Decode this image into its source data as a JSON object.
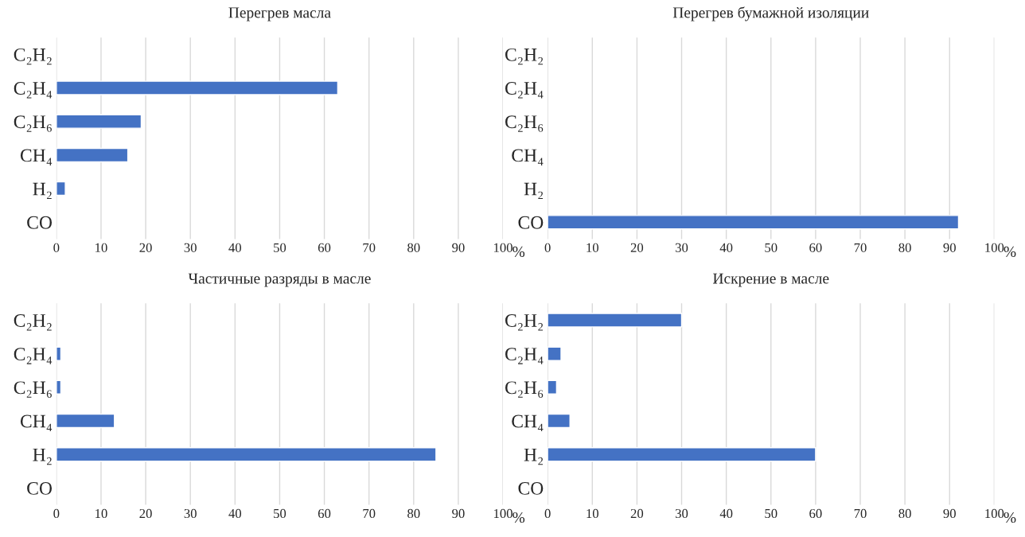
{
  "chart_data": [
    {
      "type": "bar",
      "orientation": "horizontal",
      "title": "Перегрев масла",
      "xlabel": "%",
      "categories": [
        "C₂H₂",
        "C₂H₄",
        "C₂H₆",
        "CH₄",
        "H₂",
        "CO"
      ],
      "values": [
        null,
        63,
        19,
        16,
        2,
        null
      ],
      "color": "#4472c4",
      "xlim": [
        0,
        100
      ],
      "xticks": [
        0,
        10,
        20,
        30,
        40,
        50,
        60,
        70,
        80,
        90,
        100
      ],
      "grid": "x"
    },
    {
      "type": "bar",
      "orientation": "horizontal",
      "title": "Перегрев бумажной изоляции",
      "xlabel": "%",
      "categories": [
        "C₂H₂",
        "C₂H₄",
        "C₂H₆",
        "CH₄",
        "H₂",
        "CO"
      ],
      "values": [
        null,
        null,
        null,
        null,
        null,
        92
      ],
      "color": "#4472c4",
      "xlim": [
        0,
        100
      ],
      "xticks": [
        0,
        10,
        20,
        30,
        40,
        50,
        60,
        70,
        80,
        90,
        100
      ],
      "grid": "x"
    },
    {
      "type": "bar",
      "orientation": "horizontal",
      "title": "Частичные разряды в масле",
      "xlabel": "%",
      "categories": [
        "C₂H₂",
        "C₂H₄",
        "C₂H₆",
        "CH₄",
        "H₂",
        "CO"
      ],
      "values": [
        null,
        1,
        1,
        13,
        85,
        null
      ],
      "color": "#4472c4",
      "xlim": [
        0,
        100
      ],
      "xticks": [
        0,
        10,
        20,
        30,
        40,
        50,
        60,
        70,
        80,
        90,
        100
      ],
      "grid": "x"
    },
    {
      "type": "bar",
      "orientation": "horizontal",
      "title": "Искрение в масле",
      "xlabel": "%",
      "categories": [
        "C₂H₂",
        "C₂H₄",
        "C₂H₆",
        "CH₄",
        "H₂",
        "CO"
      ],
      "values": [
        30,
        3,
        2,
        5,
        60,
        null
      ],
      "color": "#4472c4",
      "xlim": [
        0,
        100
      ],
      "xticks": [
        0,
        10,
        20,
        30,
        40,
        50,
        60,
        70,
        80,
        90,
        100
      ],
      "grid": "x"
    }
  ]
}
